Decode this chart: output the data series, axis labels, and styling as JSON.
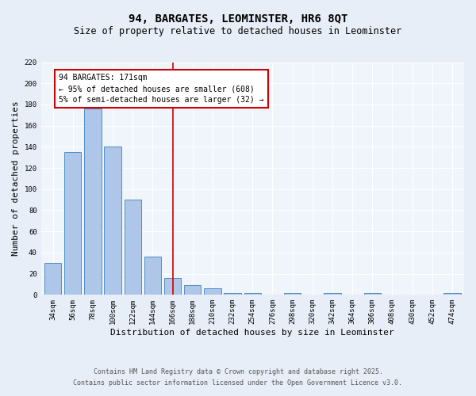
{
  "title": "94, BARGATES, LEOMINSTER, HR6 8QT",
  "subtitle": "Size of property relative to detached houses in Leominster",
  "xlabel": "Distribution of detached houses by size in Leominster",
  "ylabel": "Number of detached properties",
  "bar_labels": [
    "34sqm",
    "56sqm",
    "78sqm",
    "100sqm",
    "122sqm",
    "144sqm",
    "166sqm",
    "188sqm",
    "210sqm",
    "232sqm",
    "254sqm",
    "276sqm",
    "298sqm",
    "320sqm",
    "342sqm",
    "364sqm",
    "386sqm",
    "408sqm",
    "430sqm",
    "452sqm",
    "474sqm"
  ],
  "bar_values": [
    30,
    135,
    176,
    140,
    90,
    36,
    16,
    9,
    6,
    2,
    2,
    0,
    2,
    0,
    2,
    0,
    2,
    0,
    0,
    0,
    2
  ],
  "bar_color": "#aec6e8",
  "bar_edge_color": "#4f8fc4",
  "vline_x": 6,
  "vline_color": "#cc0000",
  "annotation_text": "94 BARGATES: 171sqm\n← 95% of detached houses are smaller (608)\n5% of semi-detached houses are larger (32) →",
  "annotation_box_color": "#cc0000",
  "ylim": [
    0,
    220
  ],
  "yticks": [
    0,
    20,
    40,
    60,
    80,
    100,
    120,
    140,
    160,
    180,
    200,
    220
  ],
  "footer_line1": "Contains HM Land Registry data © Crown copyright and database right 2025.",
  "footer_line2": "Contains public sector information licensed under the Open Government Licence v3.0.",
  "bg_color": "#e8eef7",
  "plot_bg_color": "#f0f4fb",
  "grid_color": "#ffffff",
  "title_fontsize": 10,
  "subtitle_fontsize": 8.5,
  "xlabel_fontsize": 8,
  "ylabel_fontsize": 8,
  "tick_fontsize": 6.5,
  "annotation_fontsize": 7,
  "footer_fontsize": 6
}
